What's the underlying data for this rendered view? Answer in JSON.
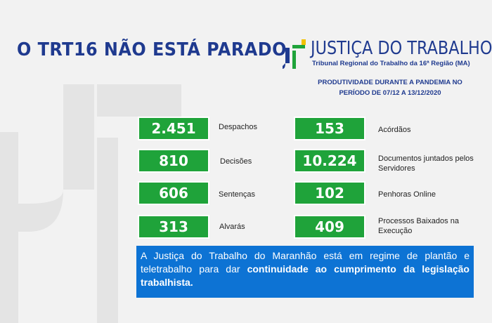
{
  "headline": "O TRT16 NÃO ESTÁ PARADO",
  "brand": {
    "title": "JUSTIÇA DO TRABALHO",
    "subtitle": "Tribunal Regional do Trabalho da 16ª Região  (MA)"
  },
  "period": "PRODUTIVIDADE DURANTE A PANDEMIA NO PERÍODO DE 07/12 A 13/12/2020",
  "stats_left": [
    {
      "value": "2.451",
      "label": "Despachos"
    },
    {
      "value": "810",
      "label": "Decisões"
    },
    {
      "value": "606",
      "label": "Sentenças"
    },
    {
      "value": "313",
      "label": "Alvarás"
    }
  ],
  "stats_right": [
    {
      "value": "153",
      "label": "Acórdãos"
    },
    {
      "value": "10.224",
      "label": "Documentos juntados pelos Servidores"
    },
    {
      "value": "102",
      "label": "Penhoras Online"
    },
    {
      "value": "409",
      "label": "Processos Baixados na Execução"
    }
  ],
  "notice": {
    "text": "A Justiça do Trabalho do Maranhão está em regime de plantão e teletrabalho para dar ",
    "emphasis": "continuidade ao cumprimento da legislação trabalhista."
  },
  "colors": {
    "blue": "#1f3a8f",
    "green": "#1fa33a",
    "notice_bg": "#0d73d4",
    "brand_yellow": "#f2c200"
  }
}
